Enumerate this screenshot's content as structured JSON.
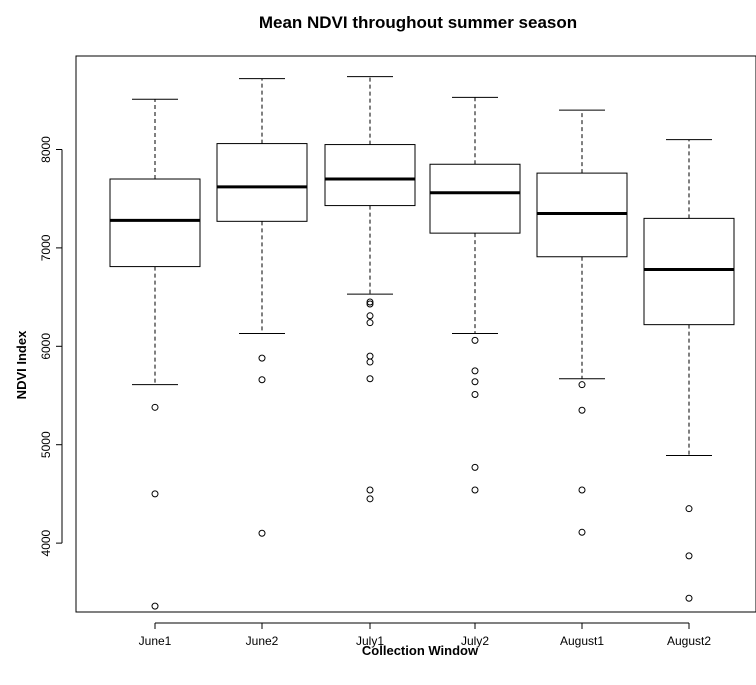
{
  "chart_data": {
    "type": "boxplot",
    "title": "Mean NDVI throughout summer season",
    "xlabel": "Collection Window",
    "ylabel": "NDVI Index",
    "ylim": [
      3300,
      8950
    ],
    "yticks": [
      4000,
      5000,
      6000,
      7000,
      8000
    ],
    "grid": false,
    "categories": [
      "June1",
      "June2",
      "July1",
      "July2",
      "August1",
      "August2"
    ],
    "boxes": [
      {
        "whisker_low": 5610,
        "q1": 6810,
        "median": 7280,
        "q3": 7700,
        "whisker_high": 8510,
        "outliers": [
          5380,
          4500,
          3360
        ]
      },
      {
        "whisker_low": 6130,
        "q1": 7270,
        "median": 7620,
        "q3": 8060,
        "whisker_high": 8720,
        "outliers": [
          5880,
          5660,
          4100
        ]
      },
      {
        "whisker_low": 6530,
        "q1": 7430,
        "median": 7700,
        "q3": 8050,
        "whisker_high": 8740,
        "outliers": [
          6450,
          6430,
          6310,
          6240,
          5900,
          5840,
          5670,
          4540,
          4450
        ]
      },
      {
        "whisker_low": 6130,
        "q1": 7150,
        "median": 7560,
        "q3": 7850,
        "whisker_high": 8530,
        "outliers": [
          6060,
          5750,
          5640,
          5510,
          4770,
          4540
        ]
      },
      {
        "whisker_low": 5670,
        "q1": 6910,
        "median": 7350,
        "q3": 7760,
        "whisker_high": 8400,
        "outliers": [
          5610,
          5350,
          4540,
          4110
        ]
      },
      {
        "whisker_low": 4890,
        "q1": 6220,
        "median": 6780,
        "q3": 7300,
        "whisker_high": 8100,
        "outliers": [
          4350,
          3870,
          3440
        ]
      }
    ]
  }
}
